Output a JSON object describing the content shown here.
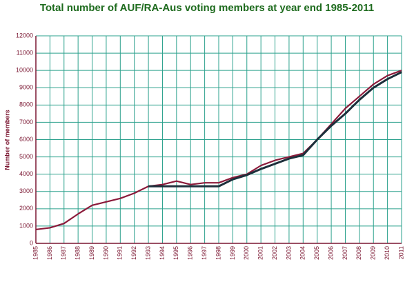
{
  "chart_data": {
    "type": "line",
    "title": "Total number of AUF/RA-Aus voting members at year end 1985-2011",
    "y_label": "Number of members",
    "categories": [
      "1985",
      "1986",
      "1987",
      "1988",
      "1989",
      "1990",
      "1991",
      "1992",
      "1993",
      "1994",
      "1995",
      "1996",
      "1997",
      "1998",
      "1999",
      "2000",
      "2001",
      "2002",
      "2003",
      "2004",
      "2005",
      "2006",
      "2007",
      "2008",
      "2009",
      "2010",
      "2011"
    ],
    "series": [
      {
        "color": "#8b1a3a",
        "values": [
          800,
          900,
          1150,
          1700,
          2200,
          2400,
          2600,
          2900,
          3300,
          3400,
          3600,
          3400,
          3500,
          3500,
          3800,
          4000,
          4500,
          4800,
          5000,
          5200,
          6000,
          6900,
          7800,
          8500,
          9200,
          9700,
          10000
        ]
      },
      {
        "color": "#1c2f3b",
        "values": [
          null,
          null,
          null,
          null,
          null,
          null,
          null,
          null,
          3300,
          3300,
          3300,
          3300,
          3300,
          3300,
          3700,
          3950,
          4300,
          4600,
          4900,
          5100,
          6000,
          6800,
          7500,
          8300,
          9000,
          9500,
          9900
        ]
      }
    ],
    "ylim": [
      0,
      12000
    ],
    "yticks": [
      0,
      1000,
      2000,
      3000,
      4000,
      5000,
      6000,
      7000,
      8000,
      9000,
      10000,
      11000,
      12000
    ],
    "grid": true,
    "grid_color": "#2aa08c"
  }
}
